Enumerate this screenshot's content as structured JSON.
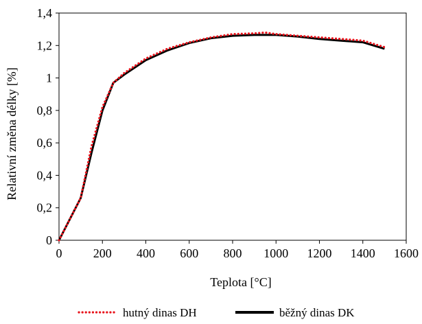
{
  "chart_data": {
    "type": "line",
    "xlabel": "Teplota [°C]",
    "ylabel": "Relativní změna délky [%]",
    "xlim": [
      0,
      1600
    ],
    "ylim": [
      0,
      1.4
    ],
    "x_ticks": [
      0,
      200,
      400,
      600,
      800,
      1000,
      1200,
      1400,
      1600
    ],
    "x_tick_labels": [
      "0",
      "200",
      "400",
      "600",
      "800",
      "1000",
      "1200",
      "1400",
      "1600"
    ],
    "y_ticks": [
      0,
      0.2,
      0.4,
      0.6,
      0.8,
      1.0,
      1.2,
      1.4
    ],
    "y_tick_labels": [
      "0",
      "0,2",
      "0,4",
      "0,6",
      "0,8",
      "1",
      "1,2",
      "1,4"
    ],
    "grid": false,
    "legend_position": "bottom",
    "series": [
      {
        "name": "hutný dinas DH",
        "color": "#e8141c",
        "style": "dotted",
        "x": [
          0,
          100,
          150,
          200,
          250,
          300,
          400,
          500,
          600,
          700,
          800,
          900,
          950,
          1000,
          1100,
          1200,
          1300,
          1400,
          1500
        ],
        "y": [
          0,
          0.26,
          0.58,
          0.82,
          0.97,
          1.03,
          1.12,
          1.18,
          1.22,
          1.25,
          1.27,
          1.275,
          1.28,
          1.27,
          1.26,
          1.25,
          1.24,
          1.23,
          1.19
        ]
      },
      {
        "name": "běžný dinas DK",
        "color": "#000000",
        "style": "solid",
        "x": [
          0,
          100,
          150,
          200,
          250,
          300,
          400,
          500,
          600,
          700,
          800,
          900,
          1000,
          1100,
          1200,
          1300,
          1400,
          1450,
          1500
        ],
        "y": [
          0,
          0.26,
          0.54,
          0.8,
          0.97,
          1.02,
          1.11,
          1.17,
          1.215,
          1.245,
          1.26,
          1.265,
          1.265,
          1.255,
          1.24,
          1.23,
          1.22,
          1.2,
          1.18
        ]
      }
    ]
  }
}
